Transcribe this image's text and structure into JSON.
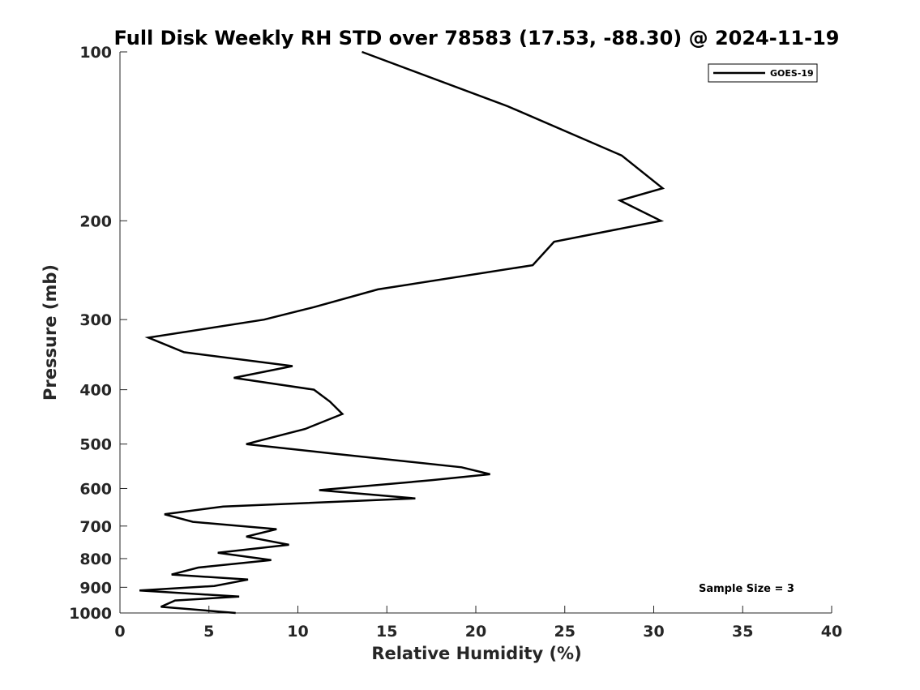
{
  "chart_data": {
    "type": "line",
    "title": "Full Disk Weekly RH STD over 78583 (17.53, -88.30) @ 2024-11-19",
    "xlabel": "Relative Humidity (%)",
    "ylabel": "Pressure (mb)",
    "xlim": [
      0,
      40
    ],
    "ylim": [
      100,
      1000
    ],
    "y_scale": "log",
    "y_reversed": true,
    "x_ticks": [
      0,
      5,
      10,
      15,
      20,
      25,
      30,
      35,
      40
    ],
    "y_ticks": [
      100,
      200,
      300,
      400,
      500,
      600,
      700,
      800,
      900,
      1000
    ],
    "grid": false,
    "legend_position": "top-right",
    "series": [
      {
        "name": "GOES-19",
        "color": "#000000",
        "points": [
          [
            13.6,
            100
          ],
          [
            21.8,
            125
          ],
          [
            28.2,
            153
          ],
          [
            30.5,
            175
          ],
          [
            28.1,
            184
          ],
          [
            30.4,
            200
          ],
          [
            24.4,
            218
          ],
          [
            23.2,
            240
          ],
          [
            14.5,
            265
          ],
          [
            10.9,
            285
          ],
          [
            8.1,
            300
          ],
          [
            1.6,
            323
          ],
          [
            3.6,
            343
          ],
          [
            9.7,
            363
          ],
          [
            6.4,
            381
          ],
          [
            10.9,
            400
          ],
          [
            11.8,
            420
          ],
          [
            12.5,
            442
          ],
          [
            10.4,
            470
          ],
          [
            7.1,
            500
          ],
          [
            12.0,
            520
          ],
          [
            19.2,
            550
          ],
          [
            20.8,
            566
          ],
          [
            17.5,
            580
          ],
          [
            11.2,
            604
          ],
          [
            16.6,
            625
          ],
          [
            5.8,
            646
          ],
          [
            2.5,
            667
          ],
          [
            4.1,
            688
          ],
          [
            8.8,
            709
          ],
          [
            7.1,
            731
          ],
          [
            9.5,
            756
          ],
          [
            5.5,
            781
          ],
          [
            8.5,
            805
          ],
          [
            4.4,
            830
          ],
          [
            2.9,
            854
          ],
          [
            7.2,
            872
          ],
          [
            5.3,
            895
          ],
          [
            1.1,
            912
          ],
          [
            6.7,
            935
          ],
          [
            3.1,
            950
          ],
          [
            2.3,
            975
          ],
          [
            6.5,
            1000
          ]
        ]
      }
    ],
    "annotation": "Sample Size = 3"
  }
}
